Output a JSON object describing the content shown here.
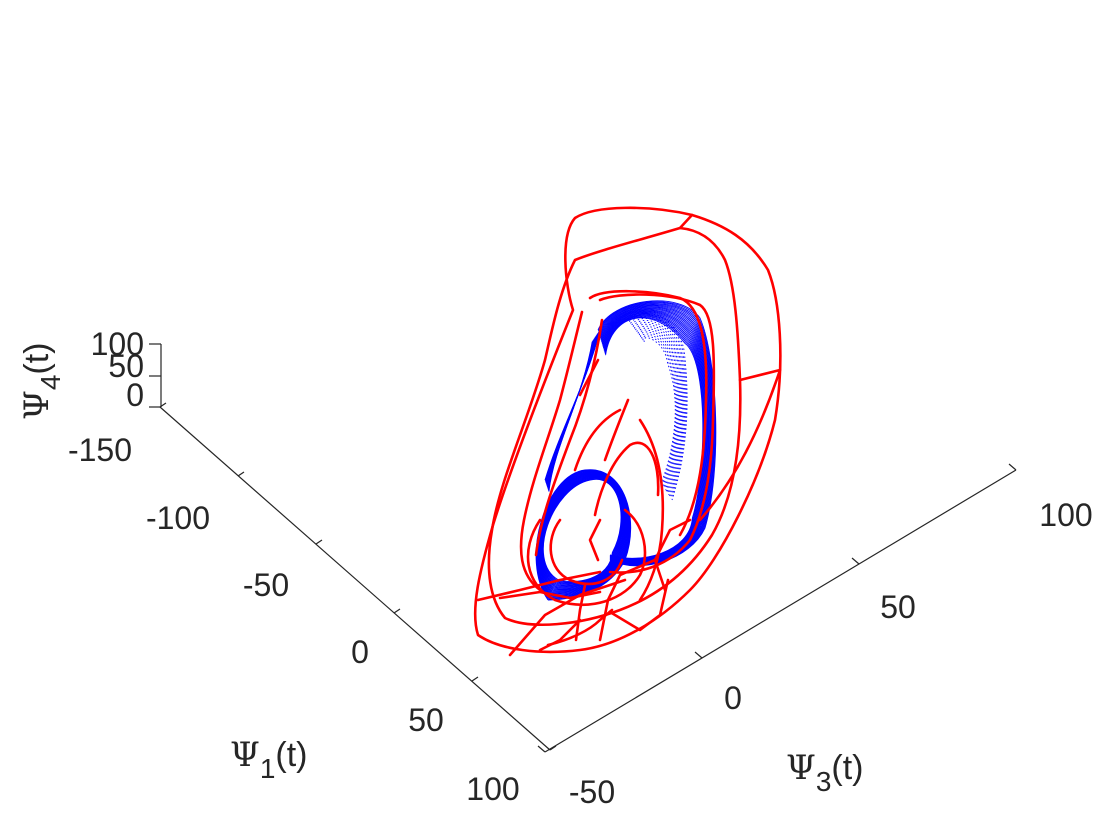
{
  "chart_data": {
    "type": "line",
    "projection": "3d",
    "title": "",
    "axes": {
      "x": {
        "label_symbol": "Ψ",
        "label_sub": "1",
        "label_suffix": "(t)",
        "ticks": [
          "-150",
          "-100",
          "-50",
          "0",
          "50",
          "100"
        ],
        "range": [
          -150,
          100
        ]
      },
      "y": {
        "label_symbol": "Ψ",
        "label_sub": "3",
        "label_suffix": "(t)",
        "ticks": [
          "-50",
          "0",
          "50",
          "100"
        ],
        "range": [
          -50,
          100
        ]
      },
      "z": {
        "label_symbol": "Ψ",
        "label_sub": "4",
        "label_suffix": "(t)",
        "ticks": [
          "0",
          "50",
          "100"
        ],
        "range": [
          0,
          100
        ]
      }
    },
    "grid": false,
    "series": [
      {
        "color": "#ff0000",
        "style": "line"
      },
      {
        "color": "#0000ff",
        "style": "dense line"
      }
    ]
  }
}
